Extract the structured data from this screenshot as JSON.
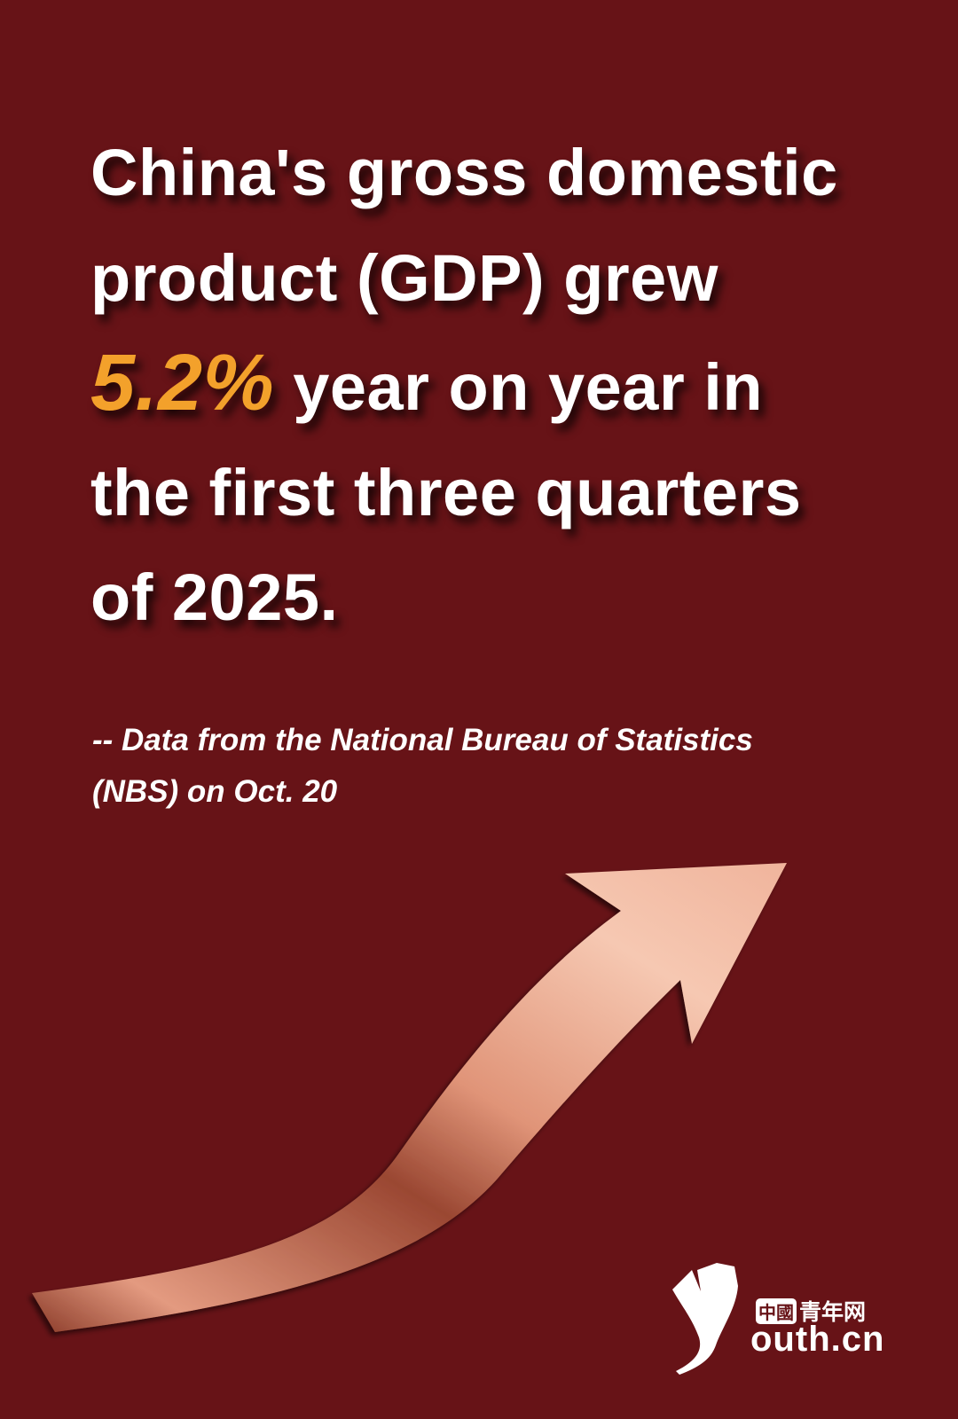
{
  "headline": {
    "line1": "China's gross domestic",
    "line2": "product (GDP) grew",
    "highlight": "5.2%",
    "line3_rest": " year on year in",
    "line4": "the first three quarters",
    "line5": "of 2025."
  },
  "source": {
    "line1": "-- Data from the National Bureau of Statistics",
    "line2": "(NBS) on Oct. 20"
  },
  "logo": {
    "cn": "中國青年网",
    "cn_boxed": "中國",
    "cn_rest": "青年网",
    "en": "outh.cn"
  },
  "colors": {
    "background": "#671317",
    "highlight": "#f3a12b",
    "text": "#ffffff",
    "arrow": "#e9a08a"
  },
  "icons": [
    "rising-arrow-graphic",
    "ginkgo-leaf-logo"
  ]
}
